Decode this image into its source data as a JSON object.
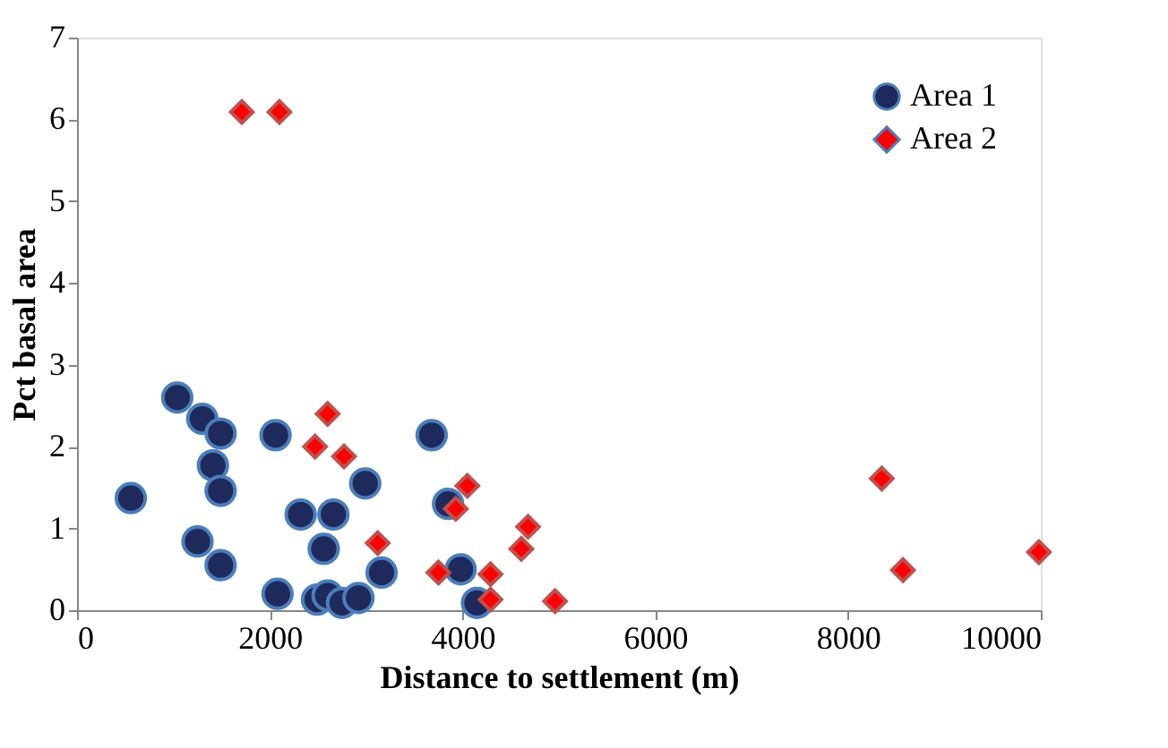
{
  "chart_data": {
    "type": "scatter",
    "xlabel": "Distance to settlement (m)",
    "ylabel": "Pct basal area",
    "xlim": [
      0,
      10000
    ],
    "xticks": [
      0,
      2000,
      4000,
      6000,
      8000,
      10000
    ],
    "ylim": [
      0,
      7
    ],
    "yticks": [
      0,
      1,
      2,
      3,
      4,
      5,
      6,
      7
    ],
    "grid": false,
    "legend": "top right",
    "series": [
      {
        "name": "Area 1",
        "color": "#1f2a5c",
        "marker": "circle",
        "x": [
          558,
          1040,
          1300,
          1490,
          1410,
          1490,
          1250,
          1490,
          2060,
          2080,
          2320,
          2660,
          2560,
          2490,
          2600,
          2750,
          2920,
          2990,
          3160,
          3680,
          3850,
          3980,
          4150
        ],
        "values": [
          1.37,
          2.6,
          2.34,
          2.16,
          1.77,
          1.46,
          0.84,
          0.55,
          2.14,
          0.2,
          1.17,
          1.17,
          0.75,
          0.13,
          0.18,
          0.09,
          0.15,
          1.55,
          0.46,
          2.14,
          1.3,
          0.5,
          0.09
        ]
      },
      {
        "name": "Area 2",
        "color": "#ff0000",
        "marker": "diamond",
        "x": [
          1710,
          2100,
          2600,
          2470,
          2770,
          3120,
          4050,
          3930,
          4680,
          4610,
          3750,
          4290,
          4290,
          4960,
          8350,
          8570,
          9980
        ],
        "values": [
          6.09,
          6.09,
          2.4,
          2.0,
          1.88,
          0.82,
          1.52,
          1.24,
          1.02,
          0.75,
          0.46,
          0.44,
          0.13,
          0.11,
          1.61,
          0.49,
          0.71
        ]
      }
    ]
  }
}
